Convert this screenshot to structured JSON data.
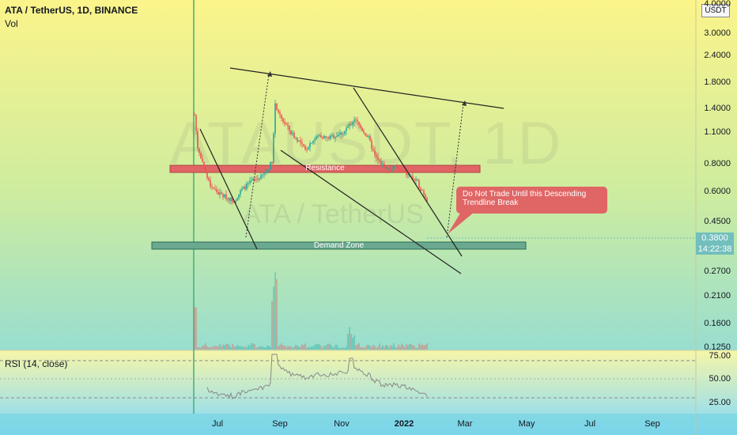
{
  "header": {
    "title": "ATA / TetherUS, 1D, BINANCE",
    "volume_label": "Vol",
    "currency": "USDT"
  },
  "watermark": {
    "symbol": "ATAUSDT, 1D",
    "name": "ATA / TetherUS"
  },
  "price_axis": {
    "labels": [
      "4.0000",
      "3.0000",
      "2.4000",
      "1.8000",
      "1.4000",
      "1.1000",
      "0.8000",
      "0.6000",
      "0.4500",
      "0.2700",
      "0.2100",
      "0.1600",
      "0.1250"
    ]
  },
  "current_price": {
    "price": "0.3800",
    "countdown": "14:22:38"
  },
  "time_axis": {
    "labels": [
      "Jul",
      "Sep",
      "Nov",
      "2022",
      "Mar",
      "May",
      "Jul",
      "Sep"
    ]
  },
  "rsi": {
    "label": "RSI (14, close)",
    "levels": [
      "75.00",
      "50.00",
      "25.00"
    ]
  },
  "annotations": {
    "resistance_label": "Resistance",
    "demand_label": "Demand Zone",
    "callout_text": "Do Not Trade Until this Descending Trendline Break"
  },
  "colors": {
    "zone_resistance": "#e06666",
    "zone_demand": "#6aa88f",
    "candle_up": "#26a69a",
    "candle_down": "#ef5350",
    "background_top": "#fdf58a",
    "background_bottom": "#7fd8e8"
  },
  "chart_data": {
    "type": "candlestick",
    "symbol": "ATA / TetherUS",
    "interval": "1D",
    "exchange": "BINANCE",
    "scale": "log",
    "y_range": [
      0.125,
      4.0
    ],
    "key_levels": {
      "resistance_zone": [
        0.76,
        0.8
      ],
      "demand_zone": [
        0.36,
        0.38
      ],
      "last_price": 0.38
    },
    "approx_close_path": [
      {
        "x": "2021-06",
        "y": 1.5
      },
      {
        "x": "2021-07",
        "y": 0.37
      },
      {
        "x": "2021-08",
        "y": 0.55
      },
      {
        "x": "2021-09",
        "y": 1.7
      },
      {
        "x": "2021-10",
        "y": 1.0
      },
      {
        "x": "2021-11",
        "y": 1.4
      },
      {
        "x": "2021-12",
        "y": 0.65
      },
      {
        "x": "2022-01",
        "y": 0.38
      }
    ]
  }
}
